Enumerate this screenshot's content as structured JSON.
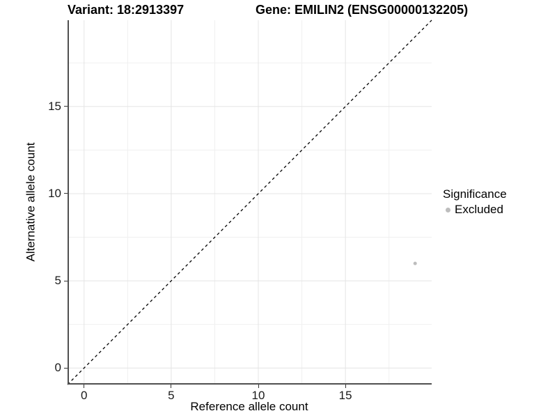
{
  "chart_data": {
    "type": "scatter",
    "title_left": "Variant: 18:2913397",
    "title_right": "Gene: EMILIN2 (ENSG00000132205)",
    "xlabel": "Reference allele count",
    "ylabel": "Alternative allele count",
    "xlim": [
      -0.95,
      19.95
    ],
    "ylim": [
      -0.95,
      19.95
    ],
    "x_major_ticks": [
      0,
      5,
      10,
      15
    ],
    "x_minor_ticks": [
      2.5,
      7.5,
      12.5,
      17.5
    ],
    "y_major_ticks": [
      0,
      5,
      10,
      15
    ],
    "y_minor_ticks": [
      2.5,
      7.5,
      12.5,
      17.5
    ],
    "grid": "major+minor",
    "legend_title": "Significance",
    "legend_position": "right",
    "reference_line": {
      "kind": "identity",
      "slope": 1,
      "intercept": 0,
      "style": "dashed",
      "color": "#000000"
    },
    "series": [
      {
        "name": "Excluded",
        "color": "#bdbdbd",
        "marker": "circle",
        "points": [
          {
            "x": 19,
            "y": 6
          }
        ]
      }
    ],
    "colors": {
      "grid_major": "#e4e4e4",
      "grid_minor": "#f0f0f0",
      "axis_line": "#4f4f4f",
      "tick_mark": "#333333",
      "tick_label": "#1a1a1a",
      "background": "#ffffff"
    }
  }
}
